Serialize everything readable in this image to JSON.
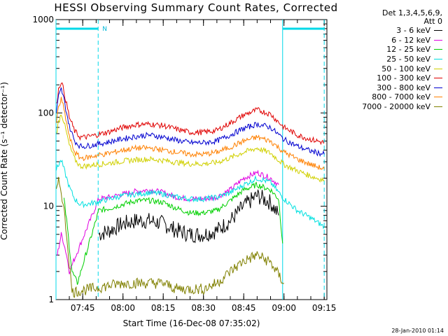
{
  "chart_data": {
    "type": "line",
    "title": "HESSI Observing Summary Count Rates, Corrected",
    "ylabel": "Corrected Count Rate (s⁻¹ detector⁻¹)",
    "xlabel": "Start Time (16-Dec-08 07:35:02)",
    "scale_y": "log",
    "ylim": [
      1,
      1000
    ],
    "y_ticks": [
      1,
      10,
      100,
      1000
    ],
    "y_tick_labels": [
      "1",
      "10",
      "100",
      "1000"
    ],
    "xlim": [
      "07:35:02",
      "09:16:00"
    ],
    "x_ticks": [
      "07:45",
      "08:00",
      "08:15",
      "08:30",
      "08:45",
      "09:00",
      "09:15"
    ],
    "legend_header": [
      "Det 1,3,4,5,6,9,",
      "Att 0"
    ],
    "legend_position": "right, outside plot",
    "timestamp": "28-Jan-2010 01:14",
    "flags": {
      "night_label": "N",
      "night_intervals": [
        [
          "07:35:02",
          "07:50:45"
        ],
        [
          "08:59:30",
          "09:15:00"
        ]
      ],
      "lines_at": [
        "07:35:02",
        "07:50:45",
        "08:59:30",
        "09:15:00"
      ]
    },
    "series": [
      {
        "name": "3 - 6 keV",
        "color": "#000000",
        "x": [
          "07:51",
          "07:55",
          "08:00",
          "08:05",
          "08:10",
          "08:15",
          "08:20",
          "08:25",
          "08:30",
          "08:35",
          "08:40",
          "08:45",
          "08:50",
          "08:55",
          "08:58"
        ],
        "y": [
          5,
          5.5,
          6.5,
          7,
          7,
          6.5,
          5.5,
          5,
          5,
          5.5,
          7,
          10,
          13,
          11,
          8
        ]
      },
      {
        "name": "6 - 12 keV",
        "color": "#e000e0",
        "x": [
          "07:35:30",
          "07:37",
          "07:38",
          "07:39",
          "07:40",
          "07:51",
          "07:55",
          "08:00",
          "08:05",
          "08:10",
          "08:15",
          "08:20",
          "08:25",
          "08:30",
          "08:35",
          "08:40",
          "08:45",
          "08:50",
          "08:55",
          "08:58"
        ],
        "y": [
          3,
          5,
          4,
          3,
          2,
          12,
          12.5,
          13.5,
          14.5,
          15,
          14,
          12.5,
          12,
          12,
          12.5,
          15,
          20,
          23,
          20,
          17
        ]
      },
      {
        "name": "12 - 25 keV",
        "color": "#00d000",
        "x": [
          "07:38",
          "07:39",
          "07:41",
          "07:43",
          "07:51",
          "07:55",
          "08:00",
          "08:05",
          "08:10",
          "08:15",
          "08:20",
          "08:25",
          "08:30",
          "08:35",
          "08:40",
          "08:45",
          "08:50",
          "08:55",
          "08:58",
          "08:59:30"
        ],
        "y": [
          12,
          7,
          2,
          1.5,
          9,
          9.5,
          10.5,
          11.5,
          11.5,
          11,
          9.5,
          8.5,
          8.5,
          9,
          11.5,
          15,
          17,
          15,
          12,
          4
        ]
      },
      {
        "name": "25 - 50 keV",
        "color": "#00e0e0",
        "x": [
          "07:35:10",
          "07:36",
          "07:37",
          "07:38",
          "07:40",
          "07:42",
          "07:44",
          "07:46",
          "07:50",
          "07:55",
          "08:00",
          "08:05",
          "08:10",
          "08:15",
          "08:20",
          "08:25",
          "08:30",
          "08:35",
          "08:40",
          "08:45",
          "08:50",
          "08:55",
          "09:00",
          "09:05",
          "09:10",
          "09:15"
        ],
        "y": [
          25,
          28,
          31,
          25,
          16,
          12,
          10.5,
          10.5,
          11,
          12,
          13,
          13.5,
          14,
          13.5,
          12.5,
          12,
          12,
          12.5,
          14,
          17,
          20,
          18,
          12,
          9,
          7.5,
          6
        ]
      },
      {
        "name": "50 - 100 keV",
        "color": "#d0d000",
        "x": [
          "07:35:10",
          "07:36",
          "07:37",
          "07:38",
          "07:40",
          "07:42",
          "07:44",
          "07:46",
          "07:50",
          "07:55",
          "08:00",
          "08:05",
          "08:10",
          "08:15",
          "08:20",
          "08:25",
          "08:30",
          "08:35",
          "08:40",
          "08:45",
          "08:50",
          "08:55",
          "09:00",
          "09:05",
          "09:10",
          "09:15"
        ],
        "y": [
          60,
          80,
          100,
          80,
          45,
          32,
          27,
          27,
          28,
          29,
          30.5,
          31.5,
          32,
          31,
          29.5,
          28.5,
          28.5,
          29.5,
          33,
          38,
          42,
          37,
          28,
          24,
          21,
          19
        ]
      },
      {
        "name": "100 - 300 keV",
        "color": "#e00000",
        "x": [
          "07:35:10",
          "07:36",
          "07:37",
          "07:38",
          "07:40",
          "07:42",
          "07:44",
          "07:46",
          "07:50",
          "07:55",
          "08:00",
          "08:05",
          "08:10",
          "08:15",
          "08:20",
          "08:25",
          "08:30",
          "08:35",
          "08:40",
          "08:45",
          "08:50",
          "08:55",
          "09:00",
          "09:05",
          "09:10",
          "09:15"
        ],
        "y": [
          120,
          180,
          220,
          170,
          90,
          64,
          55,
          55,
          58,
          63,
          70,
          75,
          76,
          73,
          67,
          62,
          62,
          65,
          78,
          95,
          108,
          97,
          70,
          58,
          52,
          48
        ]
      },
      {
        "name": "300 - 800 keV",
        "color": "#0000d0",
        "x": [
          "07:35:10",
          "07:36",
          "07:37",
          "07:38",
          "07:40",
          "07:42",
          "07:44",
          "07:46",
          "07:50",
          "07:55",
          "08:00",
          "08:05",
          "08:10",
          "08:15",
          "08:20",
          "08:25",
          "08:30",
          "08:35",
          "08:40",
          "08:45",
          "08:50",
          "08:55",
          "09:00",
          "09:05",
          "09:10",
          "09:15"
        ],
        "y": [
          100,
          150,
          180,
          140,
          72,
          50,
          44,
          44,
          46,
          49,
          53,
          56,
          58,
          55,
          51,
          48,
          48,
          50,
          58,
          68,
          76,
          70,
          52,
          44,
          39,
          36
        ]
      },
      {
        "name": "800 - 7000 keV",
        "color": "#ff8000",
        "x": [
          "07:35:10",
          "07:36",
          "07:37",
          "07:38",
          "07:40",
          "07:42",
          "07:44",
          "07:46",
          "07:50",
          "07:55",
          "08:00",
          "08:05",
          "08:10",
          "08:15",
          "08:20",
          "08:25",
          "08:30",
          "08:35",
          "08:40",
          "08:45",
          "08:50",
          "08:55",
          "09:00",
          "09:05",
          "09:10",
          "09:15"
        ],
        "y": [
          80,
          115,
          140,
          110,
          55,
          38,
          33,
          33,
          35,
          37,
          40,
          42,
          42,
          40,
          38,
          36,
          36,
          38,
          43,
          50,
          55,
          50,
          38,
          32,
          28,
          25
        ]
      },
      {
        "name": "7000 - 20000 keV",
        "color": "#808000",
        "x": [
          "07:35:10",
          "07:36",
          "07:37",
          "07:38",
          "07:39",
          "07:40",
          "07:41",
          "08:00",
          "08:05",
          "08:10",
          "08:15",
          "08:20",
          "08:25",
          "08:30",
          "08:35",
          "08:40",
          "08:45",
          "08:50",
          "08:55",
          "09:00"
        ],
        "y": [
          14,
          18,
          15,
          9,
          5,
          2.5,
          1.2,
          1.5,
          1.5,
          1.5,
          1.5,
          1.3,
          1.3,
          1.3,
          1.5,
          2,
          2.6,
          3,
          2.5,
          1.5
        ]
      }
    ]
  }
}
